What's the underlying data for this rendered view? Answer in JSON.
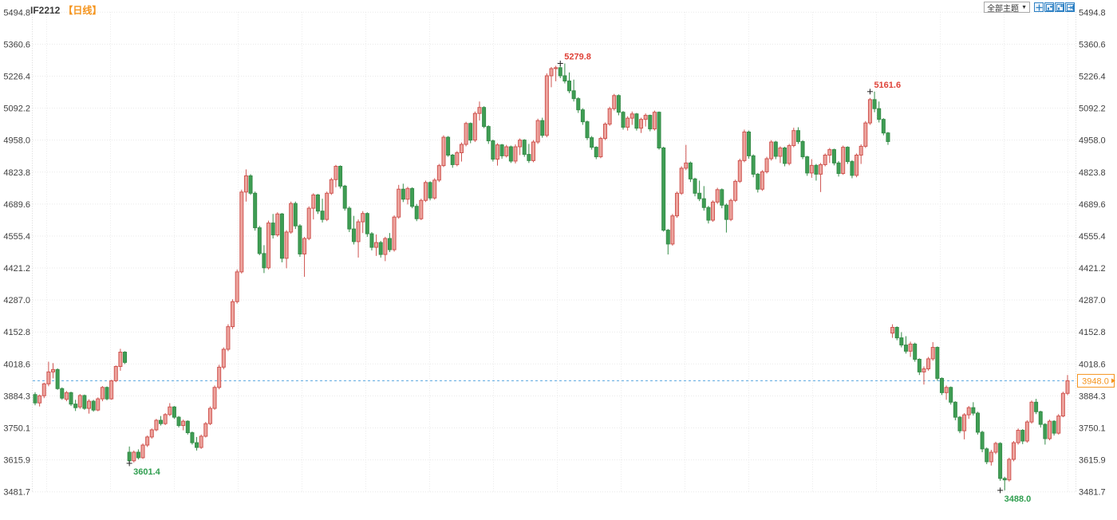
{
  "header": {
    "symbol": "IF2212",
    "period": "【日线】"
  },
  "toolbar": {
    "themes_label": "全部主题",
    "dropdown_arrow": "▼",
    "icons": [
      "zoom-icon",
      "page-left-icon",
      "page-right-icon",
      "page-end-icon"
    ]
  },
  "colors": {
    "up": "#cf5450",
    "up_fill": "#eda49e",
    "down": "#358c48",
    "down_fill": "#3f9e54",
    "annotation_up": "#df4238",
    "annotation_down": "#2f9e4f",
    "marker": "#222222",
    "price_line": "#58a6e0",
    "price_badge": "#f5941d",
    "axis_text": "#404040",
    "grid": "#e9e9e9",
    "axis_edge": "#d5d5d5"
  },
  "chart_data": {
    "type": "candlestick",
    "title": "IF2212 日线",
    "grid": true,
    "legend_position": "none",
    "y_axis_labels": [
      "5494.8",
      "5360.6",
      "5226.4",
      "5092.2",
      "4958.0",
      "4823.8",
      "4689.6",
      "4555.4",
      "4421.2",
      "4287.0",
      "4152.8",
      "4018.6",
      "3884.3",
      "3750.1",
      "3615.9",
      "3481.7"
    ],
    "ylim": [
      3481.7,
      5494.8
    ],
    "current_price": "3948.0",
    "annotations": [
      {
        "text": "5279.8",
        "price": 5279.8,
        "candle_index": 117,
        "type": "high"
      },
      {
        "text": "5161.6",
        "price": 5161.6,
        "candle_index": 186,
        "type": "high"
      },
      {
        "text": "3601.4",
        "price": 3601.4,
        "candle_index": 21,
        "type": "low"
      },
      {
        "text": "3488.0",
        "price": 3488.0,
        "candle_index": 215,
        "type": "low"
      }
    ],
    "candles": [
      [
        3890,
        3900,
        3845,
        3855
      ],
      [
        3855,
        3890,
        3840,
        3885
      ],
      [
        3885,
        3940,
        3875,
        3935
      ],
      [
        3935,
        4028,
        3925,
        3985
      ],
      [
        3985,
        4022,
        3958,
        3995
      ],
      [
        3995,
        4000,
        3910,
        3915
      ],
      [
        3915,
        3920,
        3868,
        3875
      ],
      [
        3870,
        3905,
        3862,
        3898
      ],
      [
        3898,
        3902,
        3842,
        3850
      ],
      [
        3850,
        3868,
        3821,
        3835
      ],
      [
        3838,
        3892,
        3830,
        3886
      ],
      [
        3886,
        3890,
        3826,
        3832
      ],
      [
        3832,
        3870,
        3810,
        3862
      ],
      [
        3862,
        3868,
        3818,
        3825
      ],
      [
        3825,
        3878,
        3820,
        3872
      ],
      [
        3872,
        3926,
        3862,
        3920
      ],
      [
        3920,
        3924,
        3866,
        3872
      ],
      [
        3872,
        3952,
        3868,
        3948
      ],
      [
        3948,
        4012,
        3942,
        4008
      ],
      [
        4008,
        4082,
        3990,
        4068
      ],
      [
        4068,
        4072,
        4018,
        4025
      ],
      [
        3648,
        3672,
        3601.4,
        3612
      ],
      [
        3612,
        3655,
        3605,
        3648
      ],
      [
        3648,
        3660,
        3618,
        3625
      ],
      [
        3625,
        3685,
        3620,
        3678
      ],
      [
        3678,
        3718,
        3670,
        3712
      ],
      [
        3712,
        3748,
        3705,
        3742
      ],
      [
        3742,
        3788,
        3736,
        3782
      ],
      [
        3782,
        3800,
        3760,
        3768
      ],
      [
        3768,
        3812,
        3762,
        3806
      ],
      [
        3806,
        3854,
        3800,
        3838
      ],
      [
        3838,
        3842,
        3788,
        3795
      ],
      [
        3795,
        3800,
        3752,
        3760
      ],
      [
        3760,
        3785,
        3740,
        3778
      ],
      [
        3778,
        3782,
        3722,
        3730
      ],
      [
        3730,
        3735,
        3680,
        3688
      ],
      [
        3688,
        3712,
        3655,
        3668
      ],
      [
        3668,
        3722,
        3662,
        3715
      ],
      [
        3715,
        3775,
        3710,
        3768
      ],
      [
        3768,
        3840,
        3762,
        3832
      ],
      [
        3832,
        3928,
        3826,
        3920
      ],
      [
        3920,
        4015,
        3912,
        4005
      ],
      [
        4005,
        4088,
        3996,
        4080
      ],
      [
        4080,
        4185,
        4072,
        4175
      ],
      [
        4175,
        4290,
        4165,
        4280
      ],
      [
        4280,
        4415,
        4272,
        4405
      ],
      [
        4405,
        4750,
        4398,
        4740
      ],
      [
        4740,
        4835,
        4700,
        4808
      ],
      [
        4808,
        4815,
        4728,
        4735
      ],
      [
        4735,
        4742,
        4578,
        4590
      ],
      [
        4590,
        4598,
        4475,
        4482
      ],
      [
        4482,
        4517,
        4400,
        4422
      ],
      [
        4422,
        4620,
        4415,
        4610
      ],
      [
        4610,
        4648,
        4545,
        4560
      ],
      [
        4560,
        4655,
        4552,
        4648
      ],
      [
        4648,
        4652,
        4445,
        4462
      ],
      [
        4462,
        4580,
        4420,
        4572
      ],
      [
        4572,
        4700,
        4565,
        4692
      ],
      [
        4692,
        4700,
        4585,
        4598
      ],
      [
        4598,
        4605,
        4468,
        4480
      ],
      [
        4480,
        4552,
        4384,
        4545
      ],
      [
        4545,
        4680,
        4538,
        4672
      ],
      [
        4672,
        4735,
        4625,
        4728
      ],
      [
        4728,
        4732,
        4648,
        4660
      ],
      [
        4660,
        4712,
        4612,
        4625
      ],
      [
        4625,
        4742,
        4618,
        4735
      ],
      [
        4735,
        4800,
        4728,
        4792
      ],
      [
        4792,
        4854,
        4760,
        4848
      ],
      [
        4848,
        4852,
        4755,
        4765
      ],
      [
        4765,
        4770,
        4662,
        4672
      ],
      [
        4672,
        4680,
        4572,
        4585
      ],
      [
        4585,
        4640,
        4520,
        4532
      ],
      [
        4532,
        4625,
        4465,
        4615
      ],
      [
        4615,
        4660,
        4568,
        4650
      ],
      [
        4650,
        4655,
        4552,
        4565
      ],
      [
        4565,
        4572,
        4495,
        4508
      ],
      [
        4508,
        4562,
        4472,
        4528
      ],
      [
        4528,
        4535,
        4465,
        4478
      ],
      [
        4478,
        4552,
        4450,
        4545
      ],
      [
        4545,
        4568,
        4488,
        4498
      ],
      [
        4498,
        4642,
        4490,
        4635
      ],
      [
        4635,
        4770,
        4628,
        4752
      ],
      [
        4752,
        4775,
        4698,
        4710
      ],
      [
        4710,
        4762,
        4688,
        4755
      ],
      [
        4755,
        4760,
        4672,
        4680
      ],
      [
        4680,
        4690,
        4618,
        4628
      ],
      [
        4628,
        4712,
        4622,
        4705
      ],
      [
        4705,
        4788,
        4698,
        4780
      ],
      [
        4780,
        4785,
        4705,
        4715
      ],
      [
        4715,
        4798,
        4708,
        4790
      ],
      [
        4790,
        4858,
        4782,
        4851
      ],
      [
        4851,
        4978,
        4845,
        4970
      ],
      [
        4970,
        4975,
        4888,
        4895
      ],
      [
        4895,
        4900,
        4842,
        4855
      ],
      [
        4855,
        4912,
        4848,
        4905
      ],
      [
        4905,
        4948,
        4868,
        4940
      ],
      [
        4940,
        5035,
        4932,
        5028
      ],
      [
        5028,
        5032,
        4945,
        4958
      ],
      [
        4958,
        5078,
        4950,
        5070
      ],
      [
        5070,
        5120,
        5040,
        5095
      ],
      [
        5095,
        5100,
        5008,
        5015
      ],
      [
        5015,
        5020,
        4942,
        4955
      ],
      [
        4955,
        4960,
        4868,
        4878
      ],
      [
        4878,
        4945,
        4851,
        4938
      ],
      [
        4938,
        4942,
        4880,
        4892
      ],
      [
        4892,
        4938,
        4885,
        4930
      ],
      [
        4930,
        4935,
        4862,
        4870
      ],
      [
        4870,
        4940,
        4860,
        4930
      ],
      [
        4930,
        4965,
        4895,
        4958
      ],
      [
        4958,
        4962,
        4888,
        4898
      ],
      [
        4898,
        4942,
        4862,
        4872
      ],
      [
        4872,
        4958,
        4865,
        4950
      ],
      [
        4950,
        5048,
        4942,
        5040
      ],
      [
        5040,
        5052,
        4968,
        4978
      ],
      [
        4978,
        5238,
        4970,
        5228
      ],
      [
        5228,
        5265,
        5180,
        5258
      ],
      [
        5258,
        5270,
        5205,
        5262
      ],
      [
        5262,
        5275,
        5218,
        5228
      ],
      [
        5228,
        5279.8,
        5196,
        5206
      ],
      [
        5206,
        5242,
        5155,
        5165
      ],
      [
        5165,
        5212,
        5120,
        5132
      ],
      [
        5132,
        5138,
        5072,
        5085
      ],
      [
        5085,
        5092,
        5022,
        5035
      ],
      [
        5035,
        5040,
        4958,
        4968
      ],
      [
        4968,
        4975,
        4918,
        4928
      ],
      [
        4928,
        4932,
        4878,
        4888
      ],
      [
        4888,
        4972,
        4882,
        4965
      ],
      [
        4965,
        5032,
        4958,
        5025
      ],
      [
        5025,
        5098,
        5018,
        5090
      ],
      [
        5090,
        5152,
        5082,
        5145
      ],
      [
        5145,
        5150,
        5062,
        5075
      ],
      [
        5075,
        5080,
        5002,
        5012
      ],
      [
        5012,
        5058,
        4998,
        5050
      ],
      [
        5050,
        5078,
        5022,
        5068
      ],
      [
        5068,
        5072,
        4998,
        5008
      ],
      [
        5008,
        5052,
        4988,
        5045
      ],
      [
        5045,
        5070,
        5015,
        5062
      ],
      [
        5062,
        5065,
        4995,
        5005
      ],
      [
        5005,
        5082,
        4998,
        5075
      ],
      [
        5075,
        5078,
        4918,
        4925
      ],
      [
        4925,
        4930,
        4574,
        4580
      ],
      [
        4580,
        4585,
        4478,
        4522
      ],
      [
        4522,
        4648,
        4515,
        4640
      ],
      [
        4640,
        4742,
        4632,
        4735
      ],
      [
        4735,
        4848,
        4728,
        4840
      ],
      [
        4840,
        4938,
        4832,
        4862
      ],
      [
        4862,
        4868,
        4782,
        4795
      ],
      [
        4795,
        4800,
        4722,
        4735
      ],
      [
        4735,
        4788,
        4702,
        4712
      ],
      [
        4712,
        4765,
        4662,
        4675
      ],
      [
        4675,
        4682,
        4608,
        4622
      ],
      [
        4622,
        4705,
        4615,
        4698
      ],
      [
        4698,
        4758,
        4690,
        4750
      ],
      [
        4750,
        4755,
        4672,
        4685
      ],
      [
        4685,
        4692,
        4570,
        4625
      ],
      [
        4625,
        4712,
        4618,
        4705
      ],
      [
        4705,
        4792,
        4698,
        4785
      ],
      [
        4785,
        4880,
        4778,
        4872
      ],
      [
        4872,
        5002,
        4865,
        4992
      ],
      [
        4992,
        4998,
        4880,
        4892
      ],
      [
        4892,
        4898,
        4802,
        4815
      ],
      [
        4815,
        4820,
        4738,
        4752
      ],
      [
        4752,
        4832,
        4745,
        4825
      ],
      [
        4825,
        4888,
        4818,
        4880
      ],
      [
        4880,
        4958,
        4872,
        4950
      ],
      [
        4950,
        4955,
        4878,
        4890
      ],
      [
        4890,
        4932,
        4862,
        4925
      ],
      [
        4925,
        4930,
        4848,
        4860
      ],
      [
        4860,
        4942,
        4852,
        4935
      ],
      [
        4935,
        5010,
        4928,
        4998
      ],
      [
        4998,
        5012,
        4942,
        4952
      ],
      [
        4952,
        4958,
        4878,
        4888
      ],
      [
        4888,
        4892,
        4808,
        4820
      ],
      [
        4820,
        4878,
        4800,
        4852
      ],
      [
        4852,
        4858,
        4788,
        4815
      ],
      [
        4815,
        4862,
        4740,
        4855
      ],
      [
        4855,
        4902,
        4848,
        4895
      ],
      [
        4895,
        4925,
        4862,
        4918
      ],
      [
        4918,
        4922,
        4852,
        4862
      ],
      [
        4862,
        4870,
        4805,
        4818
      ],
      [
        4818,
        4935,
        4812,
        4928
      ],
      [
        4928,
        4932,
        4858,
        4868
      ],
      [
        4868,
        4874,
        4798,
        4810
      ],
      [
        4810,
        4902,
        4802,
        4895
      ],
      [
        4895,
        4940,
        4858,
        4932
      ],
      [
        4932,
        5038,
        4925,
        5030
      ],
      [
        5030,
        5135,
        5022,
        5128
      ],
      [
        5128,
        5161.6,
        5075,
        5090
      ],
      [
        5090,
        5120,
        5032,
        5045
      ],
      [
        5045,
        5050,
        4978,
        4988
      ],
      [
        4988,
        4992,
        4938,
        4952
      ],
      [
        4148,
        4185,
        4128,
        4172
      ],
      [
        4172,
        4176,
        4118,
        4128
      ],
      [
        4128,
        4152,
        4088,
        4098
      ],
      [
        4098,
        4135,
        4062,
        4072
      ],
      [
        4072,
        4112,
        4048,
        4102
      ],
      [
        4102,
        4108,
        4028,
        4038
      ],
      [
        4038,
        4042,
        3972,
        3985
      ],
      [
        3985,
        4008,
        3932,
        3998
      ],
      [
        3998,
        4048,
        3990,
        4040
      ],
      [
        4040,
        4110,
        4032,
        4088
      ],
      [
        4088,
        4092,
        3948,
        3958
      ],
      [
        3958,
        3962,
        3888,
        3898
      ],
      [
        3898,
        3928,
        3868,
        3920
      ],
      [
        3920,
        3924,
        3848,
        3858
      ],
      [
        3858,
        3862,
        3782,
        3795
      ],
      [
        3795,
        3800,
        3728,
        3738
      ],
      [
        3738,
        3812,
        3702,
        3805
      ],
      [
        3805,
        3842,
        3788,
        3835
      ],
      [
        3835,
        3858,
        3802,
        3812
      ],
      [
        3812,
        3818,
        3722,
        3732
      ],
      [
        3732,
        3738,
        3648,
        3662
      ],
      [
        3662,
        3668,
        3598,
        3608
      ],
      [
        3608,
        3658,
        3592,
        3648
      ],
      [
        3648,
        3692,
        3640,
        3685
      ],
      [
        3685,
        3690,
        3528,
        3538
      ],
      [
        3538,
        3545,
        3488,
        3532
      ],
      [
        3532,
        3625,
        3525,
        3618
      ],
      [
        3618,
        3695,
        3610,
        3688
      ],
      [
        3688,
        3748,
        3680,
        3740
      ],
      [
        3740,
        3745,
        3682,
        3695
      ],
      [
        3695,
        3782,
        3688,
        3775
      ],
      [
        3775,
        3865,
        3768,
        3858
      ],
      [
        3858,
        3872,
        3808,
        3818
      ],
      [
        3818,
        3822,
        3752,
        3765
      ],
      [
        3765,
        3770,
        3680,
        3705
      ],
      [
        3705,
        3785,
        3698,
        3778
      ],
      [
        3778,
        3782,
        3718,
        3728
      ],
      [
        3728,
        3808,
        3722,
        3800
      ],
      [
        3800,
        3902,
        3795,
        3895
      ],
      [
        3895,
        3972,
        3888,
        3948
      ]
    ]
  }
}
